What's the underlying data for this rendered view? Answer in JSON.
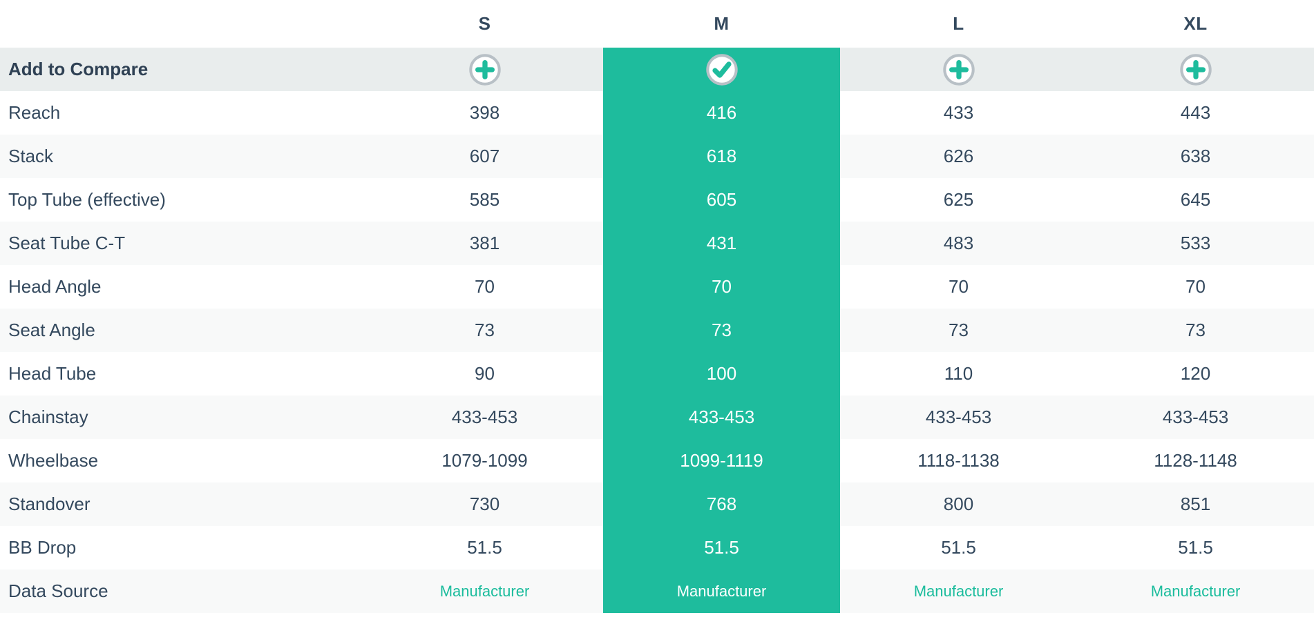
{
  "table": {
    "columns": [
      "S",
      "M",
      "L",
      "XL"
    ],
    "selected_column": "M",
    "selected_column_index": 1,
    "rows": [
      {
        "type": "compare",
        "label": "Add to Compare",
        "icons": [
          "plus-icon",
          "check-icon",
          "plus-icon",
          "plus-icon"
        ]
      },
      {
        "type": "data",
        "label": "Reach",
        "values": [
          "398",
          "416",
          "433",
          "443"
        ]
      },
      {
        "type": "data",
        "label": "Stack",
        "values": [
          "607",
          "618",
          "626",
          "638"
        ]
      },
      {
        "type": "data",
        "label": "Top Tube (effective)",
        "values": [
          "585",
          "605",
          "625",
          "645"
        ]
      },
      {
        "type": "data",
        "label": "Seat Tube C-T",
        "values": [
          "381",
          "431",
          "483",
          "533"
        ]
      },
      {
        "type": "data",
        "label": "Head Angle",
        "values": [
          "70",
          "70",
          "70",
          "70"
        ]
      },
      {
        "type": "data",
        "label": "Seat Angle",
        "values": [
          "73",
          "73",
          "73",
          "73"
        ]
      },
      {
        "type": "data",
        "label": "Head Tube",
        "values": [
          "90",
          "100",
          "110",
          "120"
        ]
      },
      {
        "type": "data",
        "label": "Chainstay",
        "values": [
          "433-453",
          "433-453",
          "433-453",
          "433-453"
        ]
      },
      {
        "type": "data",
        "label": "Wheelbase",
        "values": [
          "1079-1099",
          "1099-1119",
          "1118-1138",
          "1128-1148"
        ]
      },
      {
        "type": "data",
        "label": "Standover",
        "values": [
          "730",
          "768",
          "800",
          "851"
        ]
      },
      {
        "type": "data",
        "label": "BB Drop",
        "values": [
          "51.5",
          "51.5",
          "51.5",
          "51.5"
        ]
      },
      {
        "type": "source",
        "label": "Data Source",
        "values": [
          "Manufacturer",
          "Manufacturer",
          "Manufacturer",
          "Manufacturer"
        ]
      }
    ],
    "colors": {
      "accent_teal": "#1ebc9d",
      "link_teal": "#1abc9c",
      "navy_text": "#34495e",
      "compare_row_bg": "#e9eded",
      "alt_row_bg": "#f8f9f9",
      "icon_ring_gray": "#b8c0c6"
    }
  }
}
